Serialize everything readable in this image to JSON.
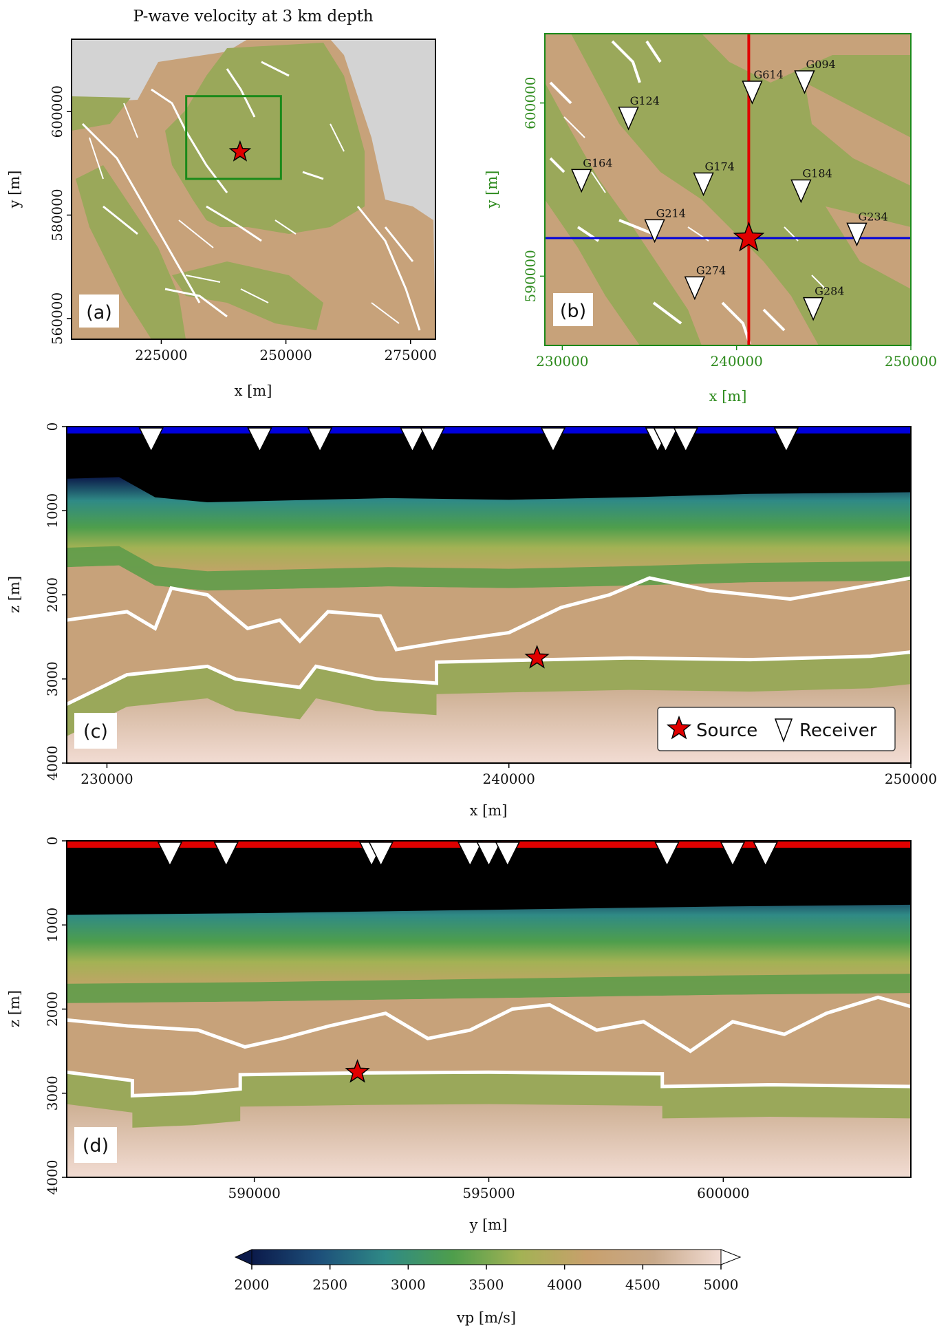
{
  "figure": {
    "colorbar": {
      "label": "vp [m/s]",
      "ticks": [
        "2000",
        "2500",
        "3000",
        "3500",
        "4000",
        "4500",
        "5000"
      ],
      "range": [
        2000,
        5000
      ],
      "colors": [
        "#0b1a4a",
        "#1d4f7a",
        "#2f8a86",
        "#4e9e4c",
        "#a3b254",
        "#c8a06c",
        "#c8a98a",
        "#f2dcd3"
      ]
    },
    "legend": {
      "source": "Source",
      "receiver": "Receiver"
    },
    "colors": {
      "source": "#e00000",
      "receiver": "#ffffff",
      "xline": "#e00000",
      "yline": "#0000dd",
      "box": "#1a8a1a",
      "water": "#000000",
      "nodata": "#d3d3d3",
      "green_rock": "#9aa85a",
      "tan_rock": "#c7a27a"
    }
  },
  "chart_data": [
    {
      "panel": "(a)",
      "type": "heatmap",
      "title": "P-wave velocity at 3 km depth",
      "xlabel": "x [m]",
      "ylabel": "y [m]",
      "xticks": [
        "225000",
        "250000",
        "275000"
      ],
      "yticks": [
        "560000",
        "580000",
        "600000"
      ],
      "xlim": [
        207000,
        280000
      ],
      "ylim": [
        556000,
        614000
      ],
      "zoom_box": {
        "x": [
          230000,
          249000
        ],
        "y": [
          587000,
          603000
        ]
      },
      "source": {
        "x": 240800,
        "y": 592200
      }
    },
    {
      "panel": "(b)",
      "type": "heatmap",
      "xlabel": "x [m]",
      "ylabel": "y [m]",
      "xticks": [
        "230000",
        "240000",
        "250000"
      ],
      "yticks": [
        "590000",
        "600000"
      ],
      "xlim": [
        229000,
        250000
      ],
      "ylim": [
        586000,
        604000
      ],
      "inline_x": 240700,
      "crossline_y": 592200,
      "source": {
        "x": 240700,
        "y": 592200
      },
      "receivers": [
        {
          "name": "G094",
          "x": 243900,
          "y": 601300
        },
        {
          "name": "G614",
          "x": 240900,
          "y": 600700
        },
        {
          "name": "G124",
          "x": 233800,
          "y": 599200
        },
        {
          "name": "G164",
          "x": 231100,
          "y": 595600
        },
        {
          "name": "G174",
          "x": 238100,
          "y": 595400
        },
        {
          "name": "G184",
          "x": 243700,
          "y": 595000
        },
        {
          "name": "G214",
          "x": 235300,
          "y": 592700
        },
        {
          "name": "G234",
          "x": 246900,
          "y": 592500
        },
        {
          "name": "G274",
          "x": 237600,
          "y": 589400
        },
        {
          "name": "G284",
          "x": 244400,
          "y": 588200
        }
      ]
    },
    {
      "panel": "(c)",
      "type": "heatmap",
      "xlabel": "x [m]",
      "ylabel": "z [m]",
      "xticks": [
        "230000",
        "240000",
        "250000"
      ],
      "yticks": [
        "0",
        "1000",
        "2000",
        "3000",
        "4000"
      ],
      "xlim": [
        229000,
        250000
      ],
      "ylim": [
        4000,
        0
      ],
      "source": {
        "x": 240700,
        "z": 2750
      },
      "receivers_x": [
        231100,
        233800,
        235300,
        237600,
        238100,
        241100,
        243700,
        243900,
        244400,
        246900
      ],
      "seabed_z": [
        [
          229000,
          620
        ],
        [
          230300,
          600
        ],
        [
          231200,
          840
        ],
        [
          232500,
          900
        ],
        [
          237000,
          850
        ],
        [
          240000,
          870
        ],
        [
          243000,
          840
        ],
        [
          246000,
          800
        ],
        [
          250000,
          780
        ]
      ],
      "horizon1_z": [
        [
          229000,
          2300
        ],
        [
          230500,
          2200
        ],
        [
          231200,
          2400
        ],
        [
          231600,
          1920
        ],
        [
          232500,
          2000
        ],
        [
          233500,
          2400
        ],
        [
          234300,
          2300
        ],
        [
          234800,
          2550
        ],
        [
          235500,
          2200
        ],
        [
          236800,
          2250
        ],
        [
          237200,
          2650
        ],
        [
          238500,
          2550
        ],
        [
          240000,
          2450
        ],
        [
          241300,
          2150
        ],
        [
          242500,
          2000
        ],
        [
          243500,
          1800
        ],
        [
          245000,
          1950
        ],
        [
          247000,
          2050
        ],
        [
          250000,
          1800
        ]
      ],
      "horizon2_z": [
        [
          229000,
          3300
        ],
        [
          230500,
          2950
        ],
        [
          232500,
          2850
        ],
        [
          233200,
          3000
        ],
        [
          234800,
          3100
        ],
        [
          235200,
          2850
        ],
        [
          236700,
          3000
        ],
        [
          238200,
          3050
        ],
        [
          238200,
          2800
        ],
        [
          240000,
          2780
        ],
        [
          243000,
          2750
        ],
        [
          246000,
          2770
        ],
        [
          249000,
          2730
        ],
        [
          250000,
          2680
        ]
      ]
    },
    {
      "panel": "(d)",
      "type": "heatmap",
      "xlabel": "y [m]",
      "ylabel": "z [m]",
      "xticks": [
        "590000",
        "595000",
        "600000"
      ],
      "yticks": [
        "0",
        "1000",
        "2000",
        "3000",
        "4000"
      ],
      "xlim": [
        586000,
        604000
      ],
      "ylim": [
        4000,
        0
      ],
      "source": {
        "y": 592200,
        "z": 2750
      },
      "receivers_y": [
        588200,
        589400,
        592500,
        592700,
        594600,
        595000,
        595400,
        598800,
        600200,
        600900
      ],
      "seabed_z": [
        [
          586000,
          880
        ],
        [
          590000,
          860
        ],
        [
          595000,
          820
        ],
        [
          600000,
          780
        ],
        [
          604000,
          760
        ]
      ],
      "horizon1_z": [
        [
          586000,
          2130
        ],
        [
          587300,
          2200
        ],
        [
          588800,
          2250
        ],
        [
          589800,
          2450
        ],
        [
          590600,
          2350
        ],
        [
          591600,
          2200
        ],
        [
          592800,
          2050
        ],
        [
          593700,
          2350
        ],
        [
          594600,
          2250
        ],
        [
          595500,
          2000
        ],
        [
          596300,
          1950
        ],
        [
          597300,
          2250
        ],
        [
          598300,
          2150
        ],
        [
          599300,
          2500
        ],
        [
          600200,
          2150
        ],
        [
          601300,
          2300
        ],
        [
          602200,
          2050
        ],
        [
          603300,
          1860
        ],
        [
          604000,
          1970
        ]
      ],
      "horizon2_z": [
        [
          586000,
          2750
        ],
        [
          587400,
          2850
        ],
        [
          587400,
          3030
        ],
        [
          588700,
          3000
        ],
        [
          589700,
          2950
        ],
        [
          589700,
          2780
        ],
        [
          592200,
          2760
        ],
        [
          595000,
          2750
        ],
        [
          598700,
          2770
        ],
        [
          598700,
          2920
        ],
        [
          601000,
          2900
        ],
        [
          604000,
          2920
        ]
      ]
    }
  ]
}
